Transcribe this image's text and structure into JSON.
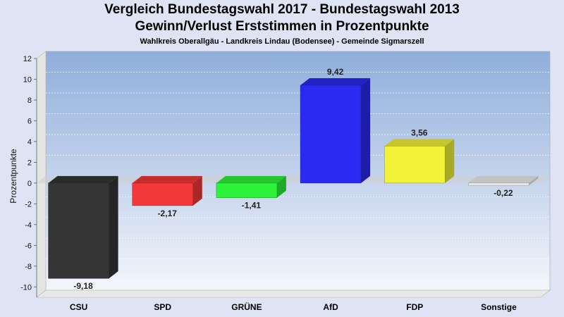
{
  "header": {
    "title_line1": "Vergleich Bundestagswahl 2017 - Bundestagswahl 2013",
    "title_line2": "Gewinn/Verlust Erststimmen in Prozentpunkte",
    "subtitle": "Wahlkreis Oberallgäu - Landkreis Lindau (Bodensee) - Gemeinde Sigmarszell"
  },
  "chart_data": {
    "type": "bar",
    "title": "Vergleich Bundestagswahl 2017 - Bundestagswahl 2013",
    "subtitle": "Gewinn/Verlust Erststimmen in Prozentpunkte",
    "xlabel": "",
    "ylabel": "Prozentpunkte",
    "categories": [
      "CSU",
      "SPD",
      "GRÜNE",
      "AfD",
      "FDP",
      "Sonstige"
    ],
    "values": [
      -9.18,
      -2.17,
      -1.41,
      9.42,
      3.56,
      -0.22
    ],
    "value_labels": [
      "-9,18",
      "-2,17",
      "-1,41",
      "9,42",
      "3,56",
      "-0,22"
    ],
    "colors": [
      "#353535",
      "#f23838",
      "#2df23a",
      "#2a2af2",
      "#f2f238",
      "#eeeeee"
    ],
    "ylim": [
      -11,
      12
    ],
    "yticks": [
      12,
      10,
      8,
      6,
      4,
      2,
      0,
      -2,
      -4,
      -6,
      -8,
      -10
    ],
    "grid": true,
    "legend": "none",
    "bar_style": "3d"
  }
}
